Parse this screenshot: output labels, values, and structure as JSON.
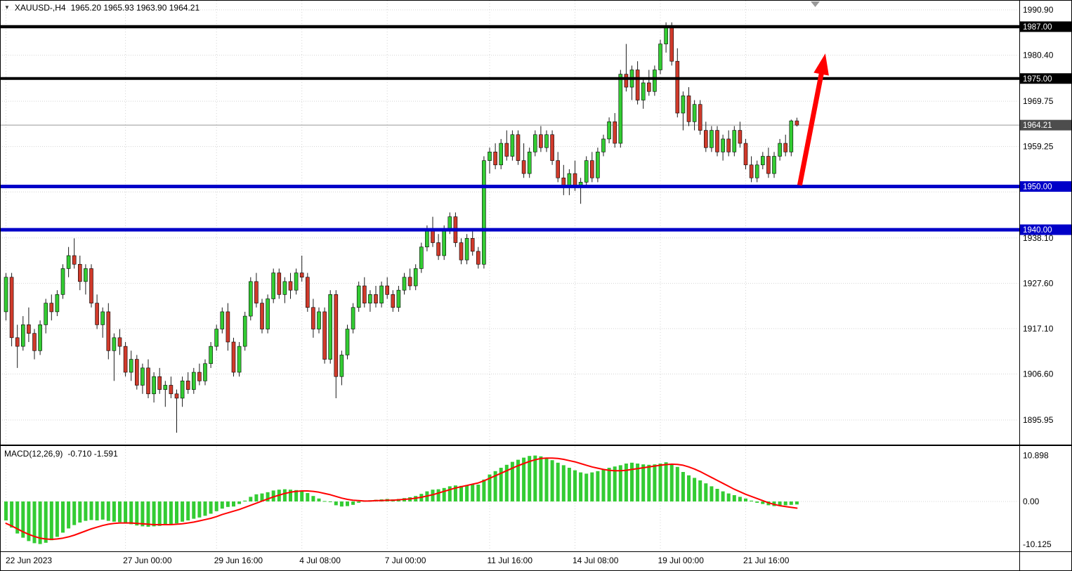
{
  "header": {
    "collapse_icon": "▼",
    "symbol_period": "XAUUSD-,H4",
    "ohlc": "1965.20 1965.93 1963.90 1964.21"
  },
  "macd_panel": {
    "name": "MACD(12,26,9)",
    "values": "-0.710 -1.591"
  },
  "chart_data": {
    "type": "candlestick",
    "title": "XAUUSD-,H4",
    "symbol": "XAUUSD-",
    "timeframe": "H4",
    "current_bar": {
      "open": 1965.2,
      "high": 1965.93,
      "low": 1963.9,
      "close": 1964.21
    },
    "price_axis": {
      "range": [
        1890.6,
        1993.2
      ],
      "ticks": [
        {
          "p": 1990.9,
          "label": "1990.90"
        },
        {
          "p": 1980.4,
          "label": "1980.40"
        },
        {
          "p": 1969.75,
          "label": "1969.75"
        },
        {
          "p": 1959.25,
          "label": "1959.25"
        },
        {
          "p": 1948.75,
          "label": ""
        },
        {
          "p": 1938.1,
          "label": "1938.10"
        },
        {
          "p": 1927.6,
          "label": "1927.60"
        },
        {
          "p": 1917.1,
          "label": "1917.10"
        },
        {
          "p": 1906.6,
          "label": "1906.60"
        },
        {
          "p": 1895.95,
          "label": "1895.95"
        }
      ]
    },
    "hlines": [
      {
        "price": 1987.0,
        "label": "1987.00",
        "color": "#000000",
        "width": 4.5,
        "label_bg": "#000000"
      },
      {
        "price": 1975.0,
        "label": "1975.00",
        "color": "#000000",
        "width": 4,
        "label_bg": "#000000"
      },
      {
        "price": 1964.21,
        "label": "1964.21",
        "color": "#999999",
        "width": 1,
        "label_bg": "#4D4D4D",
        "current": true
      },
      {
        "price": 1950.0,
        "label": "1950.00",
        "color": "#0000C8",
        "width": 5,
        "label_bg": "#0000C8"
      },
      {
        "price": 1940.0,
        "label": "1940.00",
        "color": "#0000C8",
        "width": 5,
        "label_bg": "#0000C8"
      }
    ],
    "time_axis": {
      "labels": [
        {
          "i": 0,
          "text": "22 Jun 2023"
        },
        {
          "i": 21,
          "text": "27 Jun 00:00"
        },
        {
          "i": 37,
          "text": "29 Jun 16:00"
        },
        {
          "i": 52,
          "text": "4 Jul 08:00"
        },
        {
          "i": 67,
          "text": "7 Jul 00:00"
        },
        {
          "i": 85,
          "text": "11 Jul 16:00"
        },
        {
          "i": 100,
          "text": "14 Jul 08:00"
        },
        {
          "i": 115,
          "text": "19 Jul 00:00"
        },
        {
          "i": 130,
          "text": "21 Jul 16:00"
        }
      ]
    },
    "candles": [
      [
        1921,
        1930,
        1919,
        1929
      ],
      [
        1929,
        1930,
        1913,
        1915
      ],
      [
        1915,
        1918,
        1908,
        1913
      ],
      [
        1913,
        1920,
        1912,
        1918
      ],
      [
        1918,
        1922,
        1914,
        1916
      ],
      [
        1916,
        1917,
        1910,
        1912
      ],
      [
        1912,
        1919,
        1911,
        1918
      ],
      [
        1918,
        1924,
        1916,
        1923
      ],
      [
        1923,
        1925,
        1919,
        1921
      ],
      [
        1921,
        1926,
        1920,
        1925
      ],
      [
        1925,
        1932,
        1924,
        1931
      ],
      [
        1931,
        1936,
        1929,
        1934
      ],
      [
        1934,
        1938,
        1931,
        1932
      ],
      [
        1932,
        1934,
        1926,
        1928
      ],
      [
        1928,
        1932,
        1925,
        1931
      ],
      [
        1931,
        1932,
        1922,
        1923
      ],
      [
        1923,
        1925,
        1917,
        1918
      ],
      [
        1918,
        1922,
        1915,
        1921
      ],
      [
        1921,
        1923,
        1910,
        1912
      ],
      [
        1912,
        1916,
        1905,
        1915
      ],
      [
        1915,
        1917,
        1911,
        1913
      ],
      [
        1913,
        1914,
        1906,
        1907
      ],
      [
        1907,
        1912,
        1905,
        1910
      ],
      [
        1910,
        1911,
        1903,
        1904
      ],
      [
        1904,
        1909,
        1902,
        1908
      ],
      [
        1908,
        1910,
        1901,
        1902
      ],
      [
        1902,
        1907,
        1900,
        1906
      ],
      [
        1906,
        1908,
        1902,
        1903
      ],
      [
        1903,
        1905,
        1899,
        1904
      ],
      [
        1904,
        1906,
        1901,
        1902
      ],
      [
        1902,
        1903,
        1893,
        1901
      ],
      [
        1901,
        1906,
        1899,
        1905
      ],
      [
        1905,
        1907,
        1902,
        1903
      ],
      [
        1903,
        1908,
        1902,
        1907
      ],
      [
        1907,
        1909,
        1904,
        1905
      ],
      [
        1905,
        1910,
        1904,
        1909
      ],
      [
        1909,
        1914,
        1908,
        1913
      ],
      [
        1913,
        1918,
        1912,
        1917
      ],
      [
        1917,
        1922,
        1916,
        1921
      ],
      [
        1921,
        1923,
        1912,
        1914
      ],
      [
        1914,
        1915,
        1906,
        1907
      ],
      [
        1907,
        1914,
        1906,
        1913
      ],
      [
        1913,
        1921,
        1912,
        1920
      ],
      [
        1920,
        1929,
        1919,
        1928
      ],
      [
        1928,
        1930,
        1922,
        1923
      ],
      [
        1923,
        1924,
        1916,
        1917
      ],
      [
        1917,
        1925,
        1916,
        1924
      ],
      [
        1924,
        1931,
        1923,
        1930
      ],
      [
        1930,
        1931,
        1924,
        1925
      ],
      [
        1925,
        1929,
        1923,
        1928
      ],
      [
        1928,
        1930,
        1924,
        1926
      ],
      [
        1926,
        1931,
        1925,
        1930
      ],
      [
        1930,
        1934,
        1928,
        1929
      ],
      [
        1929,
        1930,
        1921,
        1922
      ],
      [
        1922,
        1924,
        1915,
        1917
      ],
      [
        1917,
        1922,
        1916,
        1921
      ],
      [
        1921,
        1922,
        1909,
        1910
      ],
      [
        1910,
        1926,
        1909,
        1925
      ],
      [
        1925,
        1926,
        1901,
        1906
      ],
      [
        1906,
        1912,
        1904,
        1911
      ],
      [
        1911,
        1918,
        1910,
        1917
      ],
      [
        1917,
        1923,
        1916,
        1922
      ],
      [
        1922,
        1928,
        1921,
        1927
      ],
      [
        1927,
        1929,
        1922,
        1923
      ],
      [
        1923,
        1926,
        1921,
        1925
      ],
      [
        1925,
        1927,
        1922,
        1923
      ],
      [
        1923,
        1928,
        1922,
        1927
      ],
      [
        1927,
        1929,
        1924,
        1925
      ],
      [
        1925,
        1926,
        1921,
        1922
      ],
      [
        1922,
        1927,
        1921,
        1926
      ],
      [
        1926,
        1930,
        1925,
        1929
      ],
      [
        1929,
        1931,
        1926,
        1927
      ],
      [
        1927,
        1932,
        1926,
        1931
      ],
      [
        1931,
        1937,
        1930,
        1936
      ],
      [
        1936,
        1941,
        1935,
        1940
      ],
      [
        1940,
        1943,
        1936,
        1937
      ],
      [
        1937,
        1939,
        1933,
        1934
      ],
      [
        1934,
        1941,
        1933,
        1940
      ],
      [
        1940,
        1944,
        1939,
        1943
      ],
      [
        1943,
        1944,
        1936,
        1937
      ],
      [
        1937,
        1938,
        1932,
        1933
      ],
      [
        1933,
        1939,
        1932,
        1938
      ],
      [
        1938,
        1940,
        1934,
        1935
      ],
      [
        1935,
        1936,
        1931,
        1932
      ],
      [
        1932,
        1957,
        1931,
        1956
      ],
      [
        1956,
        1959,
        1953,
        1958
      ],
      [
        1958,
        1960,
        1954,
        1955
      ],
      [
        1955,
        1961,
        1954,
        1960
      ],
      [
        1960,
        1963,
        1956,
        1957
      ],
      [
        1957,
        1963,
        1956,
        1962
      ],
      [
        1962,
        1963,
        1955,
        1956
      ],
      [
        1956,
        1960,
        1952,
        1953
      ],
      [
        1953,
        1959,
        1952,
        1958
      ],
      [
        1958,
        1963,
        1957,
        1962
      ],
      [
        1962,
        1964,
        1958,
        1959
      ],
      [
        1959,
        1963,
        1958,
        1962
      ],
      [
        1962,
        1963,
        1955,
        1956
      ],
      [
        1956,
        1958,
        1951,
        1952
      ],
      [
        1952,
        1955,
        1948,
        1950
      ],
      [
        1950,
        1954,
        1948,
        1953
      ],
      [
        1953,
        1956,
        1949,
        1950
      ],
      [
        1950,
        1952,
        1946,
        1951
      ],
      [
        1951,
        1957,
        1950,
        1956
      ],
      [
        1956,
        1958,
        1951,
        1952
      ],
      [
        1952,
        1959,
        1951,
        1958
      ],
      [
        1958,
        1962,
        1957,
        1961
      ],
      [
        1961,
        1966,
        1960,
        1965
      ],
      [
        1965,
        1967,
        1959,
        1960
      ],
      [
        1960,
        1977,
        1959,
        1976
      ],
      [
        1976,
        1983,
        1972,
        1973
      ],
      [
        1973,
        1978,
        1970,
        1977
      ],
      [
        1977,
        1979,
        1969,
        1970
      ],
      [
        1970,
        1975,
        1968,
        1974
      ],
      [
        1974,
        1977,
        1971,
        1972
      ],
      [
        1972,
        1978,
        1971,
        1977
      ],
      [
        1977,
        1984,
        1976,
        1983
      ],
      [
        1983,
        1988,
        1981,
        1987
      ],
      [
        1987,
        1988,
        1978,
        1979
      ],
      [
        1979,
        1982,
        1966,
        1967
      ],
      [
        1967,
        1972,
        1963,
        1971
      ],
      [
        1971,
        1973,
        1964,
        1965
      ],
      [
        1965,
        1970,
        1963,
        1969
      ],
      [
        1969,
        1970,
        1962,
        1963
      ],
      [
        1963,
        1965,
        1958,
        1959
      ],
      [
        1959,
        1964,
        1958,
        1963
      ],
      [
        1963,
        1964,
        1957,
        1958
      ],
      [
        1958,
        1962,
        1956,
        1961
      ],
      [
        1961,
        1963,
        1957,
        1958
      ],
      [
        1958,
        1964,
        1957,
        1963
      ],
      [
        1963,
        1965,
        1959,
        1960
      ],
      [
        1960,
        1961,
        1954,
        1955
      ],
      [
        1955,
        1957,
        1951,
        1952
      ],
      [
        1952,
        1956,
        1951,
        1955
      ],
      [
        1955,
        1958,
        1954,
        1957
      ],
      [
        1957,
        1959,
        1952,
        1953
      ],
      [
        1953,
        1958,
        1952,
        1957
      ],
      [
        1957,
        1961,
        1956,
        1960
      ],
      [
        1960,
        1962,
        1957,
        1958
      ],
      [
        1958,
        1965.5,
        1957,
        1965.2
      ],
      [
        1965.2,
        1965.93,
        1963.9,
        1964.21
      ]
    ],
    "macd": {
      "params": "12,26,9",
      "value": -0.71,
      "signal_value": -1.591,
      "axis_ticks": [
        {
          "v": 10.898,
          "label": "10.898"
        },
        {
          "v": 0,
          "label": "0.00"
        },
        {
          "v": -10.125,
          "label": "-10.125"
        }
      ],
      "range": [
        -12.3,
        13.2
      ],
      "histogram": [
        -4.5,
        -6.2,
        -7.6,
        -8.6,
        -9.4,
        -9.9,
        -10.1,
        -9.8,
        -9.2,
        -8.4,
        -7.4,
        -6.4,
        -5.6,
        -5.0,
        -4.6,
        -4.4,
        -4.5,
        -4.3,
        -4.6,
        -4.8,
        -4.9,
        -5.2,
        -5.4,
        -5.7,
        -5.9,
        -6.0,
        -5.9,
        -5.8,
        -5.6,
        -5.4,
        -5.2,
        -4.8,
        -4.5,
        -4.1,
        -3.8,
        -3.4,
        -2.9,
        -2.3,
        -1.7,
        -1.3,
        -1.2,
        -0.6,
        0.2,
        1.1,
        1.7,
        1.9,
        2.2,
        2.6,
        2.8,
        2.9,
        2.8,
        2.7,
        2.5,
        2.0,
        1.3,
        0.7,
        0.1,
        -0.1,
        -0.9,
        -1.2,
        -1.1,
        -0.8,
        -0.3,
        0.1,
        0.3,
        0.4,
        0.5,
        0.6,
        0.5,
        0.6,
        0.8,
        1.0,
        1.3,
        1.8,
        2.4,
        2.8,
        2.9,
        3.2,
        3.6,
        3.8,
        3.7,
        3.9,
        4.1,
        4.0,
        5.2,
        6.4,
        7.2,
        8.0,
        8.7,
        9.4,
        9.9,
        10.4,
        10.8,
        10.9,
        10.7,
        10.3,
        9.8,
        9.2,
        8.6,
        8.0,
        7.4,
        6.9,
        6.6,
        6.9,
        7.2,
        7.6,
        8.0,
        8.3,
        8.6,
        9.0,
        9.2,
        9.0,
        8.8,
        8.7,
        8.8,
        9.0,
        9.3,
        9.0,
        8.2,
        7.0,
        6.2,
        5.6,
        5.0,
        4.3,
        3.6,
        3.0,
        2.4,
        1.9,
        1.5,
        1.1,
        0.7,
        0.2,
        -0.3,
        -0.6,
        -0.9,
        -1.1,
        -1.0,
        -0.9,
        -0.8,
        -0.71
      ],
      "signal": [
        -5.2,
        -5.8,
        -6.5,
        -7.2,
        -7.8,
        -8.3,
        -8.7,
        -8.9,
        -9.0,
        -8.9,
        -8.7,
        -8.4,
        -8.0,
        -7.5,
        -7.0,
        -6.5,
        -6.1,
        -5.7,
        -5.4,
        -5.2,
        -5.1,
        -5.1,
        -5.1,
        -5.2,
        -5.3,
        -5.4,
        -5.5,
        -5.5,
        -5.5,
        -5.5,
        -5.4,
        -5.3,
        -5.1,
        -4.9,
        -4.6,
        -4.3,
        -4.0,
        -3.6,
        -3.1,
        -2.7,
        -2.3,
        -1.9,
        -1.4,
        -0.9,
        -0.4,
        0.1,
        0.6,
        1.1,
        1.5,
        1.9,
        2.2,
        2.4,
        2.5,
        2.5,
        2.4,
        2.2,
        1.9,
        1.6,
        1.2,
        0.8,
        0.5,
        0.3,
        0.2,
        0.1,
        0.1,
        0.2,
        0.2,
        0.3,
        0.3,
        0.4,
        0.5,
        0.6,
        0.8,
        1.0,
        1.3,
        1.6,
        2.0,
        2.4,
        2.8,
        3.2,
        3.5,
        3.8,
        4.1,
        4.4,
        4.9,
        5.5,
        6.1,
        6.7,
        7.3,
        7.9,
        8.5,
        9.0,
        9.5,
        9.9,
        10.2,
        10.3,
        10.3,
        10.2,
        10.0,
        9.7,
        9.4,
        9.0,
        8.6,
        8.2,
        7.9,
        7.6,
        7.4,
        7.3,
        7.3,
        7.4,
        7.6,
        7.8,
        8.0,
        8.2,
        8.4,
        8.6,
        8.75,
        8.85,
        8.8,
        8.6,
        8.2,
        7.7,
        7.1,
        6.4,
        5.7,
        5.0,
        4.3,
        3.6,
        2.9,
        2.3,
        1.7,
        1.2,
        0.7,
        0.2,
        -0.3,
        -0.7,
        -1.0,
        -1.2,
        -1.4,
        -1.591
      ]
    },
    "arrow": {
      "from": {
        "i": 139.8,
        "price": 1950.3
      },
      "to": {
        "i": 144.3,
        "price": 1980.8
      },
      "color": "#FF0000"
    },
    "colors": {
      "up": "#33CC33",
      "down": "#D03A2B",
      "wick": "#1A1A1A",
      "grid": "#D4D4D4",
      "macd_bar": "#33CC33",
      "macd_signal": "#FF0000",
      "current_line": "#999999",
      "arrow": "#FF0000",
      "shift_marker": "#999999"
    }
  }
}
